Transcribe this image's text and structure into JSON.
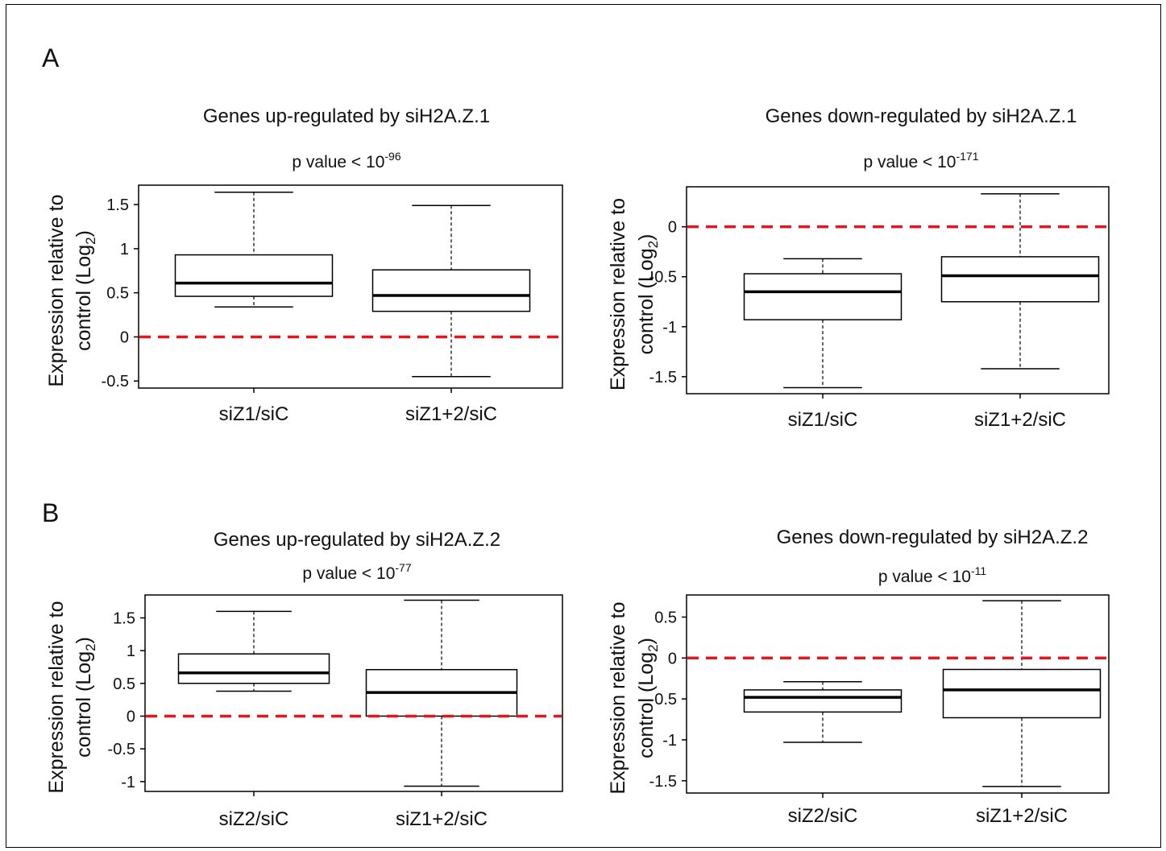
{
  "panels": [
    {
      "letter": "A"
    },
    {
      "letter": "B"
    }
  ],
  "colors": {
    "box": "#000000",
    "reference_line": "#e8141c",
    "frame": "#000000"
  },
  "chart_data": [
    {
      "type": "boxplot",
      "panel": "A",
      "title": "Genes up-regulated by siH2A.Z.1",
      "subtitle_prefix": "p value < 10",
      "subtitle_exponent": "-96",
      "ylabel_line1": "Expression relative to",
      "ylabel_line2_prefix": "control (Log",
      "ylabel_sub": "2",
      "ylabel_line2_suffix": ")",
      "yticks": [
        -0.5,
        0,
        0.5,
        1,
        1.5
      ],
      "ytick_labels": [
        "-0.5",
        "0",
        "0.5",
        "1",
        "1.5"
      ],
      "ylim": [
        -0.58,
        1.72
      ],
      "reference_line": 0,
      "categories": [
        "siZ1/siC",
        "siZ1+2/siC"
      ],
      "boxes": [
        {
          "whisker_low": 0.34,
          "q1": 0.46,
          "median": 0.61,
          "q3": 0.93,
          "whisker_high": 1.64
        },
        {
          "whisker_low": -0.45,
          "q1": 0.29,
          "median": 0.47,
          "q3": 0.76,
          "whisker_high": 1.49
        }
      ]
    },
    {
      "type": "boxplot",
      "panel": "A",
      "title": "Genes down-regulated by siH2A.Z.1",
      "subtitle_prefix": "p value < 10",
      "subtitle_exponent": "-171",
      "ylabel_line1": "Expression relative to",
      "ylabel_line2_prefix": "control (Log",
      "ylabel_sub": "2",
      "ylabel_line2_suffix": ")",
      "yticks": [
        -1.5,
        -1,
        -0.5,
        0
      ],
      "ytick_labels": [
        "-1.5",
        "-1",
        "-0.5",
        "0"
      ],
      "ylim": [
        -1.67,
        0.4
      ],
      "reference_line": 0,
      "categories": [
        "siZ1/siC",
        "siZ1+2/siC"
      ],
      "boxes": [
        {
          "whisker_low": -1.61,
          "q1": -0.93,
          "median": -0.65,
          "q3": -0.47,
          "whisker_high": -0.32
        },
        {
          "whisker_low": -1.42,
          "q1": -0.75,
          "median": -0.49,
          "q3": -0.3,
          "whisker_high": 0.33
        }
      ]
    },
    {
      "type": "boxplot",
      "panel": "B",
      "title": "Genes up-regulated by siH2A.Z.2",
      "subtitle_prefix": "p value < 10",
      "subtitle_exponent": "-77",
      "ylabel_line1": "Expression relative to",
      "ylabel_line2_prefix": "control (Log",
      "ylabel_sub": "2",
      "ylabel_line2_suffix": ")",
      "yticks": [
        -1,
        -0.5,
        0,
        0.5,
        1,
        1.5
      ],
      "ytick_labels": [
        "-1",
        "-0.5",
        "0",
        "0.5",
        "1",
        "1.5"
      ],
      "ylim": [
        -1.15,
        1.85
      ],
      "reference_line": 0,
      "categories": [
        "siZ2/siC",
        "siZ1+2/siC"
      ],
      "boxes": [
        {
          "whisker_low": 0.38,
          "q1": 0.5,
          "median": 0.66,
          "q3": 0.95,
          "whisker_high": 1.6
        },
        {
          "whisker_low": -1.07,
          "q1": 0.0,
          "median": 0.36,
          "q3": 0.71,
          "whisker_high": 1.77
        }
      ]
    },
    {
      "type": "boxplot",
      "panel": "B",
      "title": "Genes down-regulated by siH2A.Z.2",
      "subtitle_prefix": "p value < 10",
      "subtitle_exponent": "-11",
      "ylabel_line1": "Expression relative to",
      "ylabel_line2_prefix": "control (Log",
      "ylabel_sub": "2",
      "ylabel_line2_suffix": ")",
      "yticks": [
        -1.5,
        -1,
        -0.5,
        0,
        0.5
      ],
      "ytick_labels": [
        "-1.5",
        "-1",
        "-0.5",
        "0",
        "0.5"
      ],
      "ylim": [
        -1.65,
        0.77
      ],
      "reference_line": 0,
      "categories": [
        "siZ2/siC",
        "siZ1+2/siC"
      ],
      "boxes": [
        {
          "whisker_low": -1.03,
          "q1": -0.66,
          "median": -0.48,
          "q3": -0.39,
          "whisker_high": -0.29
        },
        {
          "whisker_low": -1.57,
          "q1": -0.73,
          "median": -0.39,
          "q3": -0.14,
          "whisker_high": 0.7
        }
      ]
    }
  ]
}
